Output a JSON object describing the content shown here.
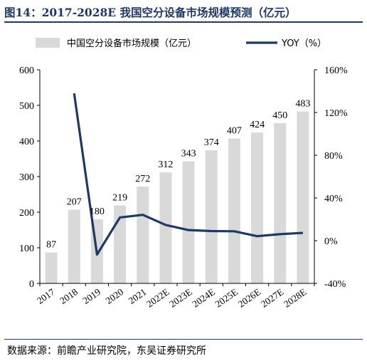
{
  "figure": {
    "title": "图14：2017-2028E 我国空分设备市场规模预测（亿元）",
    "source": "数据来源：前瞻产业研究院，东吴证券研究所"
  },
  "chart_data": {
    "type": "bar+line",
    "title": "2017-2028E 我国空分设备市场规模预测（亿元）",
    "categories": [
      "2017",
      "2018",
      "2019",
      "2020",
      "2021",
      "2022E",
      "2023E",
      "2024E",
      "2025E",
      "2026E",
      "2027E",
      "2028E"
    ],
    "series": [
      {
        "name": "中国空分设备市场规模（亿元）",
        "type": "bar",
        "axis": "left",
        "color": "#d9d9d9",
        "values": [
          87,
          207,
          180,
          219,
          272,
          312,
          343,
          374,
          407,
          424,
          450,
          483
        ]
      },
      {
        "name": "YOY（%）",
        "type": "line",
        "axis": "right",
        "color": "#1f3864",
        "values": [
          null,
          137.9,
          -13.0,
          21.7,
          24.2,
          14.7,
          9.9,
          9.0,
          8.8,
          4.2,
          6.1,
          7.3
        ]
      }
    ],
    "ylim_left": [
      0,
      600
    ],
    "yticks_left": [
      "0",
      "100",
      "200",
      "300",
      "400",
      "500",
      "600"
    ],
    "ylim_right": [
      -40,
      160
    ],
    "yticks_right": [
      "-40%",
      "0%",
      "40%",
      "80%",
      "120%",
      "160%"
    ],
    "data_labels": [
      "87",
      "207",
      "180",
      "219",
      "272",
      "312",
      "343",
      "374",
      "407",
      "424",
      "450",
      "483"
    ],
    "legend_position": "top",
    "grid": false
  }
}
